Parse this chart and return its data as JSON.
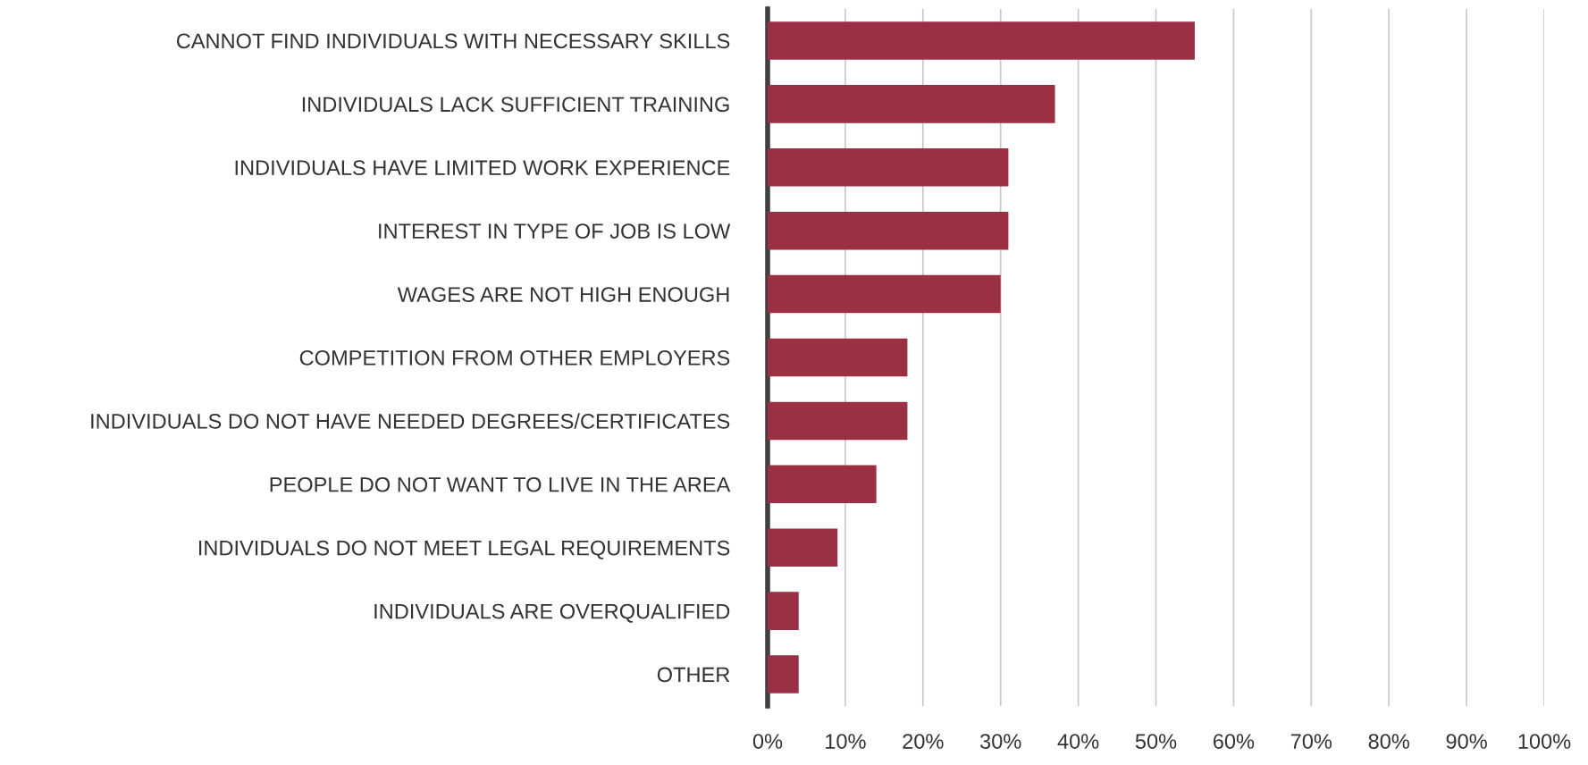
{
  "chart_data": {
    "type": "bar",
    "orientation": "horizontal",
    "categories": [
      "CANNOT FIND INDIVIDUALS WITH NECESSARY SKILLS",
      "INDIVIDUALS LACK SUFFICIENT TRAINING",
      "INDIVIDUALS HAVE LIMITED WORK EXPERIENCE",
      "INTEREST IN TYPE OF JOB IS LOW",
      "WAGES ARE NOT HIGH ENOUGH",
      "COMPETITION FROM OTHER EMPLOYERS",
      "INDIVIDUALS DO NOT HAVE NEEDED DEGREES/CERTIFICATES",
      "PEOPLE DO NOT WANT TO LIVE IN THE AREA",
      "INDIVIDUALS DO NOT MEET LEGAL REQUIREMENTS",
      "INDIVIDUALS ARE OVERQUALIFIED",
      "OTHER"
    ],
    "values": [
      55,
      37,
      31,
      31,
      30,
      18,
      18,
      14,
      9,
      4,
      4
    ],
    "color": "#9b2f44",
    "xlim": [
      0,
      100
    ],
    "xticks": [
      {
        "value": 0,
        "label": "0%"
      },
      {
        "value": 10,
        "label": "10%"
      },
      {
        "value": 20,
        "label": "20%"
      },
      {
        "value": 30,
        "label": "30%"
      },
      {
        "value": 40,
        "label": "40%"
      },
      {
        "value": 50,
        "label": "50%"
      },
      {
        "value": 60,
        "label": "60%"
      },
      {
        "value": 70,
        "label": "70%"
      },
      {
        "value": 80,
        "label": "80%"
      },
      {
        "value": 90,
        "label": "90%"
      },
      {
        "value": 100,
        "label": "100%"
      }
    ],
    "grid": "x",
    "legend": false
  }
}
